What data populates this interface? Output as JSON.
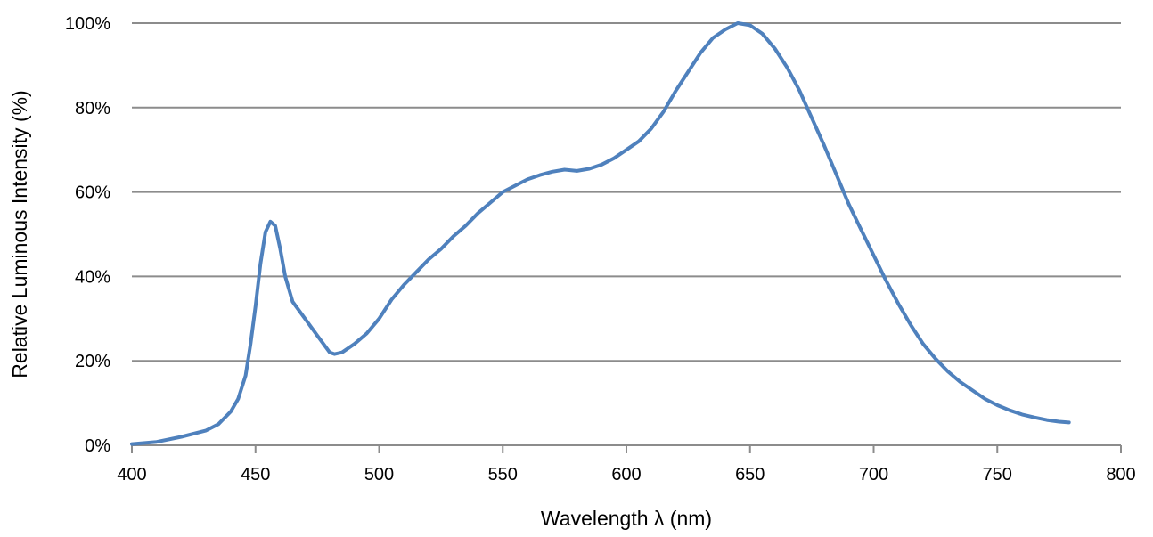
{
  "chart_data": {
    "type": "line",
    "title": "",
    "xlabel": "Wavelength λ (nm)",
    "ylabel": "Relative Luminous Intensity (%)",
    "xlim": [
      400,
      800
    ],
    "ylim": [
      0,
      100
    ],
    "x_ticks": [
      "400",
      "450",
      "500",
      "550",
      "600",
      "650",
      "700",
      "750",
      "800"
    ],
    "y_ticks": [
      "0%",
      "20%",
      "40%",
      "60%",
      "80%",
      "100%"
    ],
    "grid": "horizontal",
    "legend": "none",
    "series": [
      {
        "color": "#4F81BD",
        "points": [
          [
            400,
            0.3
          ],
          [
            410,
            0.8
          ],
          [
            420,
            2.0
          ],
          [
            430,
            3.5
          ],
          [
            435,
            5.0
          ],
          [
            440,
            8.0
          ],
          [
            443,
            11.0
          ],
          [
            446,
            16.5
          ],
          [
            448,
            24.0
          ],
          [
            450,
            33.0
          ],
          [
            452,
            43.0
          ],
          [
            454,
            50.5
          ],
          [
            456,
            53.0
          ],
          [
            458,
            52.0
          ],
          [
            460,
            46.5
          ],
          [
            462,
            40.0
          ],
          [
            465,
            34.0
          ],
          [
            470,
            30.0
          ],
          [
            475,
            26.0
          ],
          [
            480,
            22.0
          ],
          [
            482,
            21.6
          ],
          [
            485,
            22.0
          ],
          [
            490,
            24.0
          ],
          [
            495,
            26.5
          ],
          [
            500,
            30.0
          ],
          [
            505,
            34.5
          ],
          [
            510,
            38.0
          ],
          [
            515,
            41.0
          ],
          [
            520,
            44.0
          ],
          [
            525,
            46.5
          ],
          [
            530,
            49.5
          ],
          [
            535,
            52.0
          ],
          [
            540,
            55.0
          ],
          [
            545,
            57.5
          ],
          [
            550,
            60.0
          ],
          [
            555,
            61.5
          ],
          [
            560,
            63.0
          ],
          [
            565,
            64.0
          ],
          [
            570,
            64.8
          ],
          [
            575,
            65.3
          ],
          [
            580,
            65.0
          ],
          [
            585,
            65.5
          ],
          [
            590,
            66.5
          ],
          [
            595,
            68.0
          ],
          [
            600,
            70.0
          ],
          [
            605,
            72.0
          ],
          [
            610,
            75.0
          ],
          [
            615,
            79.0
          ],
          [
            620,
            84.0
          ],
          [
            625,
            88.5
          ],
          [
            630,
            93.0
          ],
          [
            635,
            96.5
          ],
          [
            640,
            98.5
          ],
          [
            645,
            100.0
          ],
          [
            650,
            99.5
          ],
          [
            655,
            97.5
          ],
          [
            660,
            94.0
          ],
          [
            665,
            89.5
          ],
          [
            670,
            84.0
          ],
          [
            675,
            77.5
          ],
          [
            680,
            71.0
          ],
          [
            685,
            64.0
          ],
          [
            690,
            57.0
          ],
          [
            695,
            51.0
          ],
          [
            700,
            45.0
          ],
          [
            705,
            39.0
          ],
          [
            710,
            33.5
          ],
          [
            715,
            28.5
          ],
          [
            720,
            24.0
          ],
          [
            725,
            20.5
          ],
          [
            730,
            17.5
          ],
          [
            735,
            15.0
          ],
          [
            740,
            13.0
          ],
          [
            745,
            11.0
          ],
          [
            750,
            9.5
          ],
          [
            755,
            8.3
          ],
          [
            760,
            7.3
          ],
          [
            765,
            6.6
          ],
          [
            770,
            6.0
          ],
          [
            775,
            5.6
          ],
          [
            779,
            5.4
          ]
        ]
      }
    ]
  }
}
